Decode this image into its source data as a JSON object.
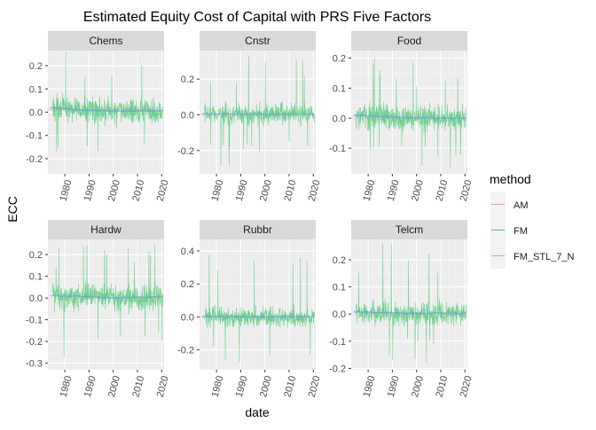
{
  "chart_data": {
    "type": "line",
    "title": "Estimated Equity Cost of Capital with PRS Five Factors",
    "xlabel": "date",
    "ylabel": "ECC",
    "legend": {
      "title": "method",
      "position": "right",
      "entries": [
        {
          "name": "AM",
          "color": "#F8766D"
        },
        {
          "name": "FM",
          "color": "#00BA38"
        },
        {
          "name": "FM_STL_7_N",
          "color": "#619CFF"
        }
      ]
    },
    "grid": true,
    "x_ticks": [
      1980,
      1990,
      2000,
      2010,
      2020
    ],
    "x_range": [
      1973,
      2021
    ],
    "panels": [
      {
        "name": "Chems",
        "ylim": [
          -0.265,
          0.265
        ],
        "y_ticks": [
          -0.2,
          -0.1,
          0.0,
          0.1,
          0.2
        ],
        "fm_range": [
          -0.25,
          0.26
        ],
        "fm_spread": 0.07,
        "series": [
          {
            "name": "AM",
            "x": [
              1973,
              1990,
              2005,
              2020
            ],
            "y": [
              0.01,
              0.01,
              0.01,
              0.01
            ]
          },
          {
            "name": "FM",
            "x": [
              1975,
              1985,
              1995,
              2005,
              2010,
              2020
            ],
            "y": [
              0.02,
              0.01,
              0.0,
              0.005,
              0.01,
              0.0
            ],
            "note_min": -0.25,
            "note_max": 0.26
          },
          {
            "name": "FM_STL_7_N",
            "x": [
              1973,
              1980,
              1990,
              2000,
              2010,
              2020
            ],
            "y": [
              0.02,
              0.015,
              0.008,
              0.004,
              0.005,
              0.005
            ]
          }
        ]
      },
      {
        "name": "Cnstr",
        "ylim": [
          -0.33,
          0.36
        ],
        "y_ticks": [
          -0.2,
          0.0,
          0.2
        ],
        "fm_range": [
          -0.3,
          0.34
        ],
        "fm_spread": 0.075,
        "series": [
          {
            "name": "AM",
            "x": [
              1973,
              1990,
              2005,
              2020
            ],
            "y": [
              0.0,
              0.0,
              0.0,
              0.0
            ]
          },
          {
            "name": "FM",
            "x": [
              1975,
              1985,
              1995,
              2005,
              2010,
              2020
            ],
            "y": [
              0.0,
              0.005,
              0.0,
              0.005,
              0.0,
              0.0
            ]
          },
          {
            "name": "FM_STL_7_N",
            "x": [
              1973,
              1980,
              1990,
              2000,
              2010,
              2020
            ],
            "y": [
              0.005,
              0.004,
              0.003,
              0.002,
              0.003,
              0.002
            ]
          }
        ]
      },
      {
        "name": "Food",
        "ylim": [
          -0.185,
          0.225
        ],
        "y_ticks": [
          -0.1,
          0.0,
          0.1,
          0.2
        ],
        "fm_range": [
          -0.17,
          0.2
        ],
        "fm_spread": 0.055,
        "series": [
          {
            "name": "AM",
            "x": [
              1973,
              1990,
              2005,
              2020
            ],
            "y": [
              0.0,
              0.0,
              0.0,
              0.0
            ]
          },
          {
            "name": "FM",
            "x": [
              1975,
              1985,
              1995,
              2005,
              2010,
              2020
            ],
            "y": [
              0.005,
              0.005,
              0.0,
              0.0,
              0.0,
              0.0
            ]
          },
          {
            "name": "FM_STL_7_N",
            "x": [
              1973,
              1980,
              1990,
              2000,
              2010,
              2020
            ],
            "y": [
              0.01,
              0.008,
              0.004,
              0.002,
              0.001,
              0.0
            ]
          }
        ]
      },
      {
        "name": "Hardw",
        "ylim": [
          -0.33,
          0.27
        ],
        "y_ticks": [
          -0.3,
          -0.2,
          -0.1,
          0.0,
          0.1,
          0.2
        ],
        "fm_range": [
          -0.31,
          0.25
        ],
        "fm_spread": 0.08,
        "series": [
          {
            "name": "AM",
            "x": [
              1973,
              1990,
              2005,
              2020
            ],
            "y": [
              0.0,
              0.0,
              0.0,
              0.0
            ]
          },
          {
            "name": "FM",
            "x": [
              1975,
              1985,
              1995,
              2000,
              2010,
              2020
            ],
            "y": [
              0.01,
              0.0,
              0.01,
              0.0,
              0.0,
              0.0
            ]
          },
          {
            "name": "FM_STL_7_N",
            "x": [
              1973,
              1980,
              1990,
              2000,
              2010,
              2020
            ],
            "y": [
              0.012,
              0.01,
              0.006,
              0.0,
              0.004,
              0.004
            ]
          }
        ]
      },
      {
        "name": "Rubbr",
        "ylim": [
          -0.32,
          0.47
        ],
        "y_ticks": [
          -0.2,
          0.0,
          0.2,
          0.4
        ],
        "fm_range": [
          -0.29,
          0.43
        ],
        "fm_spread": 0.075,
        "series": [
          {
            "name": "AM",
            "x": [
              1973,
              1990,
              2005,
              2020
            ],
            "y": [
              0.0,
              0.0,
              0.0,
              0.0
            ]
          },
          {
            "name": "FM",
            "x": [
              1975,
              1985,
              1995,
              2005,
              2010,
              2020
            ],
            "y": [
              0.005,
              0.0,
              0.0,
              0.0,
              0.0,
              0.0
            ]
          },
          {
            "name": "FM_STL_7_N",
            "x": [
              1973,
              1980,
              1990,
              2000,
              2010,
              2020
            ],
            "y": [
              0.004,
              0.003,
              0.002,
              0.001,
              0.002,
              0.002
            ]
          }
        ]
      },
      {
        "name": "Telcm",
        "ylim": [
          -0.205,
          0.275
        ],
        "y_ticks": [
          -0.2,
          -0.1,
          0.0,
          0.1,
          0.2
        ],
        "fm_range": [
          -0.18,
          0.26
        ],
        "fm_spread": 0.055,
        "series": [
          {
            "name": "AM",
            "x": [
              1973,
              1990,
              2005,
              2020
            ],
            "y": [
              0.0,
              0.0,
              0.0,
              0.0
            ]
          },
          {
            "name": "FM",
            "x": [
              1975,
              1985,
              1995,
              2005,
              2010,
              2020
            ],
            "y": [
              0.0,
              0.005,
              0.0,
              0.0,
              0.0,
              0.0
            ]
          },
          {
            "name": "FM_STL_7_N",
            "x": [
              1973,
              1980,
              1990,
              2000,
              2010,
              2020
            ],
            "y": [
              0.008,
              0.006,
              0.004,
              0.003,
              0.003,
              0.002
            ]
          }
        ]
      }
    ]
  }
}
